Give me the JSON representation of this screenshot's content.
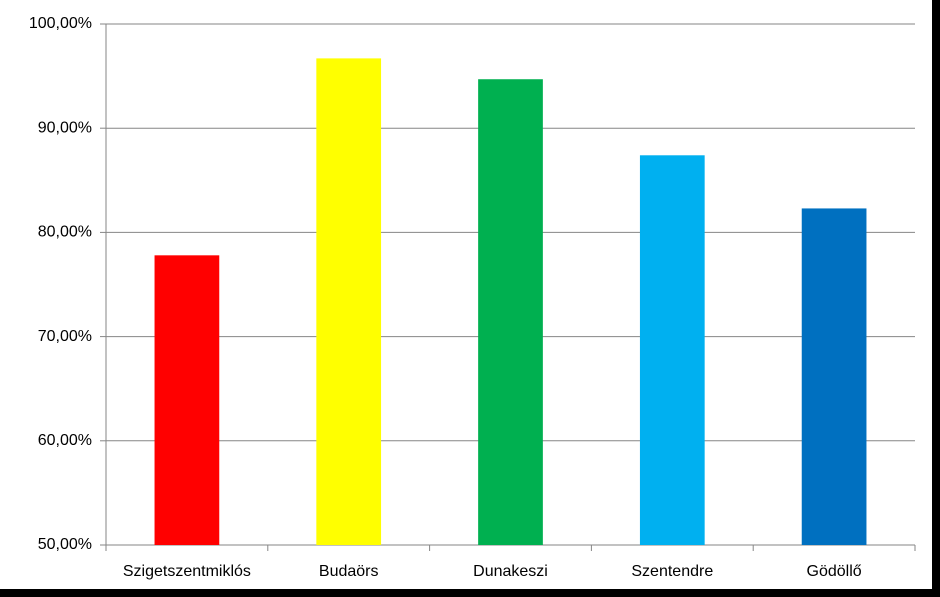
{
  "chart_data": {
    "type": "bar",
    "categories": [
      "Szigetszentmiklós",
      "Budaörs",
      "Dunakeszi",
      "Szentendre",
      "Gödöllő"
    ],
    "values": [
      77.8,
      96.7,
      94.7,
      87.4,
      82.3
    ],
    "colors": [
      "#ff0000",
      "#ffff00",
      "#00b050",
      "#00b0f0",
      "#0070c0"
    ],
    "ylim": [
      50,
      100
    ],
    "yticks": [
      {
        "value": 50,
        "label": "50,00%"
      },
      {
        "value": 60,
        "label": "60,00%"
      },
      {
        "value": 70,
        "label": "70,00%"
      },
      {
        "value": 80,
        "label": "80,00%"
      },
      {
        "value": 90,
        "label": "90,00%"
      },
      {
        "value": 100,
        "label": "100,00%"
      }
    ],
    "grid": true
  }
}
